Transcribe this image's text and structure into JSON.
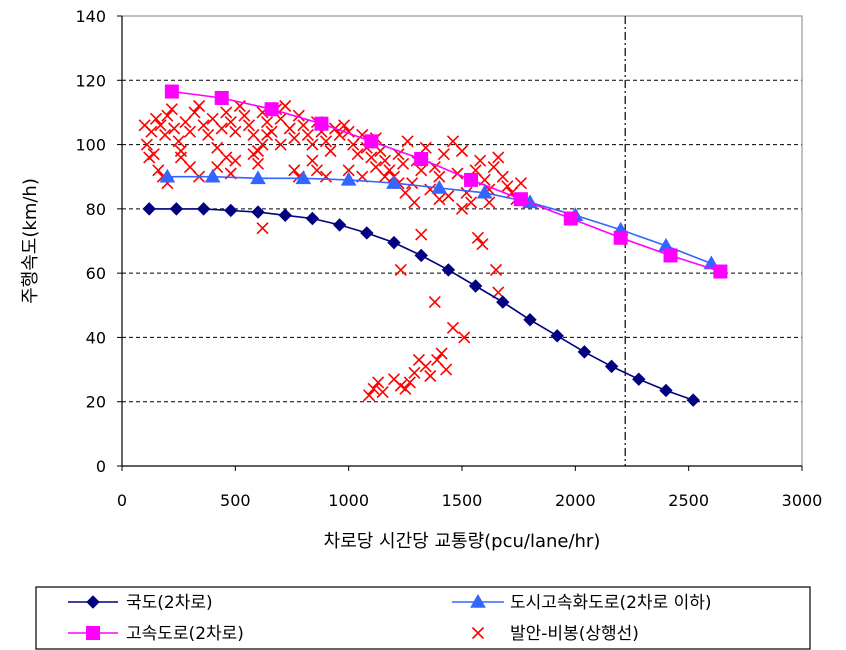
{
  "chart_data": {
    "type": "scatter",
    "title": "",
    "xlabel": "차로당 시간당 교통량(pcu/lane/hr)",
    "ylabel": "주행속도(km/h)",
    "xlim": [
      0,
      3000
    ],
    "ylim": [
      0,
      140
    ],
    "x_ticks": [
      "0",
      "500",
      "1000",
      "1500",
      "2000",
      "2500",
      "3000"
    ],
    "y_ticks": [
      "0",
      "20",
      "40",
      "60",
      "80",
      "100",
      "120",
      "140"
    ],
    "grid": "horizontal dashed",
    "vline_x": 2220,
    "legend_position": "bottom",
    "series": [
      {
        "name": "국도(2차로)",
        "kind": "line",
        "marker": "diamond",
        "color": "#000080",
        "points": [
          [
            120,
            80
          ],
          [
            240,
            80
          ],
          [
            360,
            80
          ],
          [
            480,
            79.5
          ],
          [
            600,
            79
          ],
          [
            720,
            78
          ],
          [
            840,
            77
          ],
          [
            960,
            75
          ],
          [
            1080,
            72.5
          ],
          [
            1200,
            69.5
          ],
          [
            1320,
            65.5
          ],
          [
            1440,
            61
          ],
          [
            1560,
            56
          ],
          [
            1680,
            51
          ],
          [
            1800,
            45.5
          ],
          [
            1920,
            40.5
          ],
          [
            2040,
            35.5
          ],
          [
            2160,
            31
          ],
          [
            2280,
            27
          ],
          [
            2400,
            23.5
          ],
          [
            2520,
            20.5
          ]
        ]
      },
      {
        "name": "도시고속화도로(2차로 이하)",
        "kind": "line",
        "marker": "triangle",
        "color": "#3366ff",
        "points": [
          [
            200,
            90
          ],
          [
            400,
            90
          ],
          [
            600,
            89.5
          ],
          [
            800,
            89.5
          ],
          [
            1000,
            89
          ],
          [
            1200,
            88
          ],
          [
            1400,
            86.5
          ],
          [
            1600,
            85
          ],
          [
            1800,
            82
          ],
          [
            2000,
            78
          ],
          [
            2200,
            73.5
          ],
          [
            2400,
            68.5
          ],
          [
            2600,
            63
          ]
        ]
      },
      {
        "name": "고속도로(2차로)",
        "kind": "line",
        "marker": "square",
        "color": "#ff00ff",
        "points": [
          [
            220,
            116.5
          ],
          [
            440,
            114.5
          ],
          [
            660,
            111
          ],
          [
            880,
            106.5
          ],
          [
            1100,
            101
          ],
          [
            1320,
            95.5
          ],
          [
            1540,
            89
          ],
          [
            1760,
            83
          ],
          [
            1980,
            77
          ],
          [
            2200,
            71
          ],
          [
            2420,
            65.5
          ],
          [
            2640,
            60.5
          ]
        ]
      },
      {
        "name": "발안-비봉(상행선)",
        "kind": "scatter",
        "marker": "x",
        "color": "#ff0000",
        "points": [
          [
            100,
            106
          ],
          [
            130,
            104
          ],
          [
            110,
            100
          ],
          [
            150,
            108
          ],
          [
            170,
            106
          ],
          [
            140,
            97
          ],
          [
            190,
            103
          ],
          [
            200,
            109
          ],
          [
            220,
            111
          ],
          [
            230,
            105
          ],
          [
            250,
            101
          ],
          [
            260,
            98
          ],
          [
            280,
            107
          ],
          [
            300,
            104
          ],
          [
            320,
            110
          ],
          [
            340,
            112
          ],
          [
            360,
            106
          ],
          [
            380,
            103
          ],
          [
            400,
            108
          ],
          [
            420,
            99
          ],
          [
            440,
            105
          ],
          [
            460,
            110
          ],
          [
            480,
            107
          ],
          [
            500,
            104
          ],
          [
            520,
            112
          ],
          [
            540,
            109
          ],
          [
            560,
            106
          ],
          [
            580,
            103
          ],
          [
            600,
            98
          ],
          [
            620,
            110
          ],
          [
            640,
            107
          ],
          [
            660,
            104
          ],
          [
            680,
            111
          ],
          [
            700,
            108
          ],
          [
            720,
            112
          ],
          [
            740,
            105
          ],
          [
            760,
            102
          ],
          [
            780,
            109
          ],
          [
            800,
            106
          ],
          [
            820,
            103
          ],
          [
            840,
            100
          ],
          [
            860,
            107
          ],
          [
            880,
            104
          ],
          [
            900,
            101
          ],
          [
            920,
            98
          ],
          [
            940,
            105
          ],
          [
            960,
            103
          ],
          [
            980,
            106
          ],
          [
            1000,
            104
          ],
          [
            1020,
            100
          ],
          [
            1040,
            97
          ],
          [
            1060,
            103
          ],
          [
            1080,
            99
          ],
          [
            1100,
            96
          ],
          [
            1120,
            102
          ],
          [
            1140,
            98
          ],
          [
            1160,
            95
          ],
          [
            1180,
            92
          ],
          [
            1200,
            90
          ],
          [
            1220,
            97
          ],
          [
            1240,
            94
          ],
          [
            1260,
            101
          ],
          [
            1280,
            88
          ],
          [
            1300,
            95
          ],
          [
            1320,
            92
          ],
          [
            1340,
            99
          ],
          [
            1360,
            86
          ],
          [
            1380,
            93
          ],
          [
            1400,
            90
          ],
          [
            1420,
            97
          ],
          [
            1440,
            84
          ],
          [
            1460,
            101
          ],
          [
            1480,
            91
          ],
          [
            1500,
            98
          ],
          [
            1520,
            85
          ],
          [
            1540,
            82
          ],
          [
            1560,
            92
          ],
          [
            1580,
            95
          ],
          [
            1600,
            89
          ],
          [
            1620,
            86
          ],
          [
            1640,
            93
          ],
          [
            1660,
            96
          ],
          [
            1680,
            90
          ],
          [
            1700,
            87
          ],
          [
            1720,
            85
          ],
          [
            1740,
            83
          ],
          [
            1760,
            88
          ],
          [
            1620,
            82
          ],
          [
            1500,
            80
          ],
          [
            1400,
            83
          ],
          [
            1290,
            82
          ],
          [
            1250,
            85
          ],
          [
            1220,
            88
          ],
          [
            120,
            96
          ],
          [
            160,
            92
          ],
          [
            200,
            88
          ],
          [
            180,
            90
          ],
          [
            260,
            96
          ],
          [
            300,
            93
          ],
          [
            340,
            90
          ],
          [
            420,
            93
          ],
          [
            460,
            96
          ],
          [
            480,
            91
          ],
          [
            500,
            95
          ],
          [
            580,
            97
          ],
          [
            600,
            94
          ],
          [
            620,
            100
          ],
          [
            640,
            103
          ],
          [
            700,
            100
          ],
          [
            760,
            92
          ],
          [
            780,
            90
          ],
          [
            840,
            95
          ],
          [
            860,
            92
          ],
          [
            900,
            90
          ],
          [
            1000,
            92
          ],
          [
            1060,
            90
          ],
          [
            1120,
            93
          ],
          [
            1160,
            90
          ],
          [
            620,
            74
          ],
          [
            1230,
            61
          ],
          [
            1320,
            72
          ],
          [
            1380,
            51
          ],
          [
            1460,
            43
          ],
          [
            1510,
            40
          ],
          [
            1570,
            71
          ],
          [
            1590,
            69
          ],
          [
            1650,
            61
          ],
          [
            1660,
            54
          ],
          [
            1090,
            22
          ],
          [
            1110,
            24
          ],
          [
            1130,
            26
          ],
          [
            1150,
            23
          ],
          [
            1200,
            27
          ],
          [
            1230,
            25
          ],
          [
            1250,
            24
          ],
          [
            1270,
            26
          ],
          [
            1290,
            29
          ],
          [
            1310,
            33
          ],
          [
            1340,
            31
          ],
          [
            1360,
            28
          ],
          [
            1390,
            33
          ],
          [
            1410,
            35
          ],
          [
            1430,
            30
          ]
        ]
      }
    ]
  }
}
